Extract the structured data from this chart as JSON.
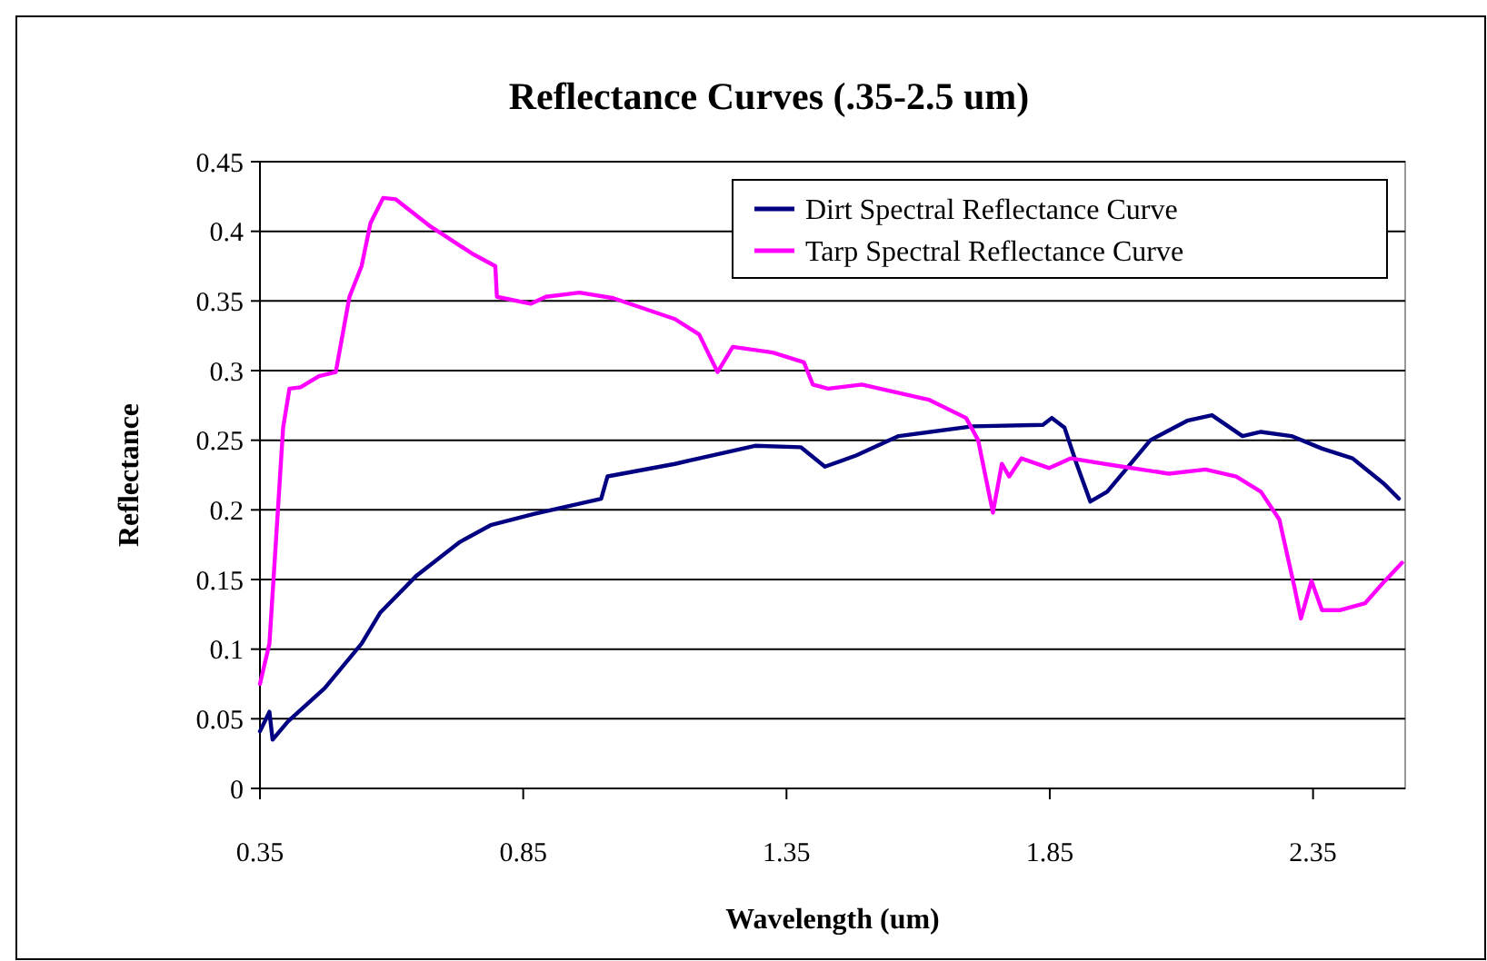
{
  "chart_data": {
    "type": "line",
    "title": "Reflectance Curves (.35-2.5 um)",
    "xlabel": "Wavelength (um)",
    "ylabel": "Reflectance",
    "xlim": [
      0.35,
      2.525
    ],
    "xticks": [
      0.35,
      0.85,
      1.35,
      1.85,
      2.35
    ],
    "ylim": [
      0,
      0.45
    ],
    "yticks": [
      0,
      0.05,
      0.1,
      0.15,
      0.2,
      0.25,
      0.3,
      0.35,
      0.4,
      0.45
    ],
    "grid": "y",
    "legend": "top right",
    "marker": "none",
    "line_style": "solid",
    "series": [
      {
        "name": "Dirt Spectral Reflectance Curve",
        "color": "#000080",
        "x": [
          0.35,
          0.368,
          0.374,
          0.403,
          0.473,
          0.543,
          0.578,
          0.648,
          0.73,
          0.788,
          0.87,
          0.998,
          1.01,
          1.138,
          1.29,
          1.377,
          1.423,
          1.482,
          1.563,
          1.703,
          1.837,
          1.854,
          1.878,
          1.901,
          1.927,
          1.959,
          2.041,
          2.111,
          2.158,
          2.216,
          2.251,
          2.309,
          2.367,
          2.425,
          2.484,
          2.513
        ],
        "values": [
          0.041,
          0.055,
          0.035,
          0.048,
          0.072,
          0.104,
          0.126,
          0.153,
          0.177,
          0.189,
          0.197,
          0.208,
          0.224,
          0.233,
          0.246,
          0.245,
          0.231,
          0.239,
          0.253,
          0.26,
          0.261,
          0.266,
          0.259,
          0.233,
          0.206,
          0.213,
          0.25,
          0.264,
          0.268,
          0.253,
          0.256,
          0.253,
          0.244,
          0.237,
          0.219,
          0.208
        ]
      },
      {
        "name": "Tarp Spectral Reflectance Curve",
        "color": "#ff00ff",
        "x": [
          0.35,
          0.368,
          0.394,
          0.406,
          0.427,
          0.462,
          0.494,
          0.52,
          0.543,
          0.56,
          0.584,
          0.608,
          0.672,
          0.753,
          0.797,
          0.8,
          0.864,
          0.893,
          0.957,
          1.021,
          1.138,
          1.184,
          1.219,
          1.248,
          1.324,
          1.383,
          1.4,
          1.429,
          1.493,
          1.621,
          1.691,
          1.714,
          1.742,
          1.759,
          1.773,
          1.796,
          1.849,
          1.89,
          1.971,
          2.076,
          2.146,
          2.204,
          2.251,
          2.286,
          2.315,
          2.327,
          2.347,
          2.367,
          2.402,
          2.449,
          2.484,
          2.519
        ],
        "values": [
          0.075,
          0.104,
          0.259,
          0.287,
          0.288,
          0.296,
          0.299,
          0.353,
          0.375,
          0.406,
          0.424,
          0.423,
          0.404,
          0.384,
          0.375,
          0.353,
          0.348,
          0.353,
          0.356,
          0.352,
          0.337,
          0.326,
          0.299,
          0.317,
          0.313,
          0.306,
          0.29,
          0.287,
          0.29,
          0.279,
          0.266,
          0.25,
          0.198,
          0.233,
          0.224,
          0.237,
          0.23,
          0.237,
          0.232,
          0.226,
          0.229,
          0.224,
          0.213,
          0.193,
          0.144,
          0.122,
          0.149,
          0.128,
          0.128,
          0.133,
          0.148,
          0.162
        ]
      }
    ]
  }
}
